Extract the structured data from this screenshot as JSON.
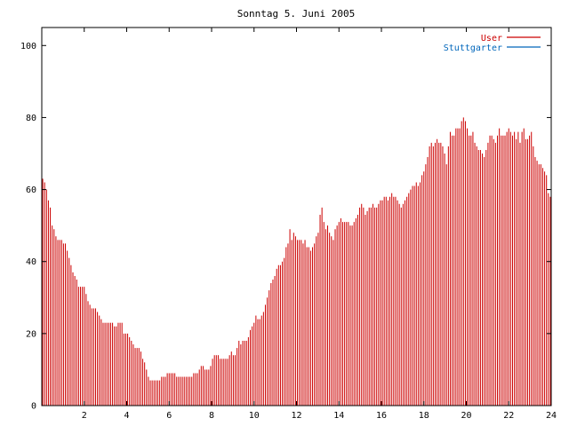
{
  "chart_data": {
    "type": "bar",
    "title": "Sonntag 5. Juni 2005",
    "xlabel": "",
    "ylabel": "",
    "xlim": [
      0,
      24
    ],
    "ylim": [
      0,
      105
    ],
    "x_ticks": [
      2,
      4,
      6,
      8,
      10,
      12,
      14,
      16,
      18,
      20,
      22,
      24
    ],
    "y_ticks": [
      0,
      20,
      40,
      60,
      80,
      100
    ],
    "grid": false,
    "legend_position": "top-right",
    "series": [
      {
        "name": "User",
        "color": "#cc0000",
        "values": [
          63,
          62,
          60,
          57,
          55,
          50,
          49,
          47,
          46,
          46,
          46,
          45,
          45,
          43,
          41,
          39,
          37,
          36,
          35,
          33,
          33,
          33,
          33,
          31,
          29,
          28,
          27,
          27,
          27,
          26,
          25,
          24,
          23,
          23,
          23,
          23,
          23,
          23,
          22,
          22,
          23,
          23,
          23,
          20,
          20,
          20,
          19,
          18,
          17,
          16,
          16,
          16,
          15,
          13,
          12,
          10,
          8,
          7,
          7,
          7,
          7,
          7,
          7,
          8,
          8,
          8,
          9,
          9,
          9,
          9,
          9,
          8,
          8,
          8,
          8,
          8,
          8,
          8,
          8,
          8,
          9,
          9,
          9,
          10,
          11,
          11,
          10,
          10,
          10,
          11,
          13,
          14,
          14,
          14,
          13,
          13,
          13,
          13,
          13,
          14,
          15,
          14,
          14,
          16,
          18,
          17,
          18,
          18,
          18,
          19,
          21,
          22,
          23,
          25,
          24,
          24,
          25,
          26,
          28,
          30,
          32,
          34,
          35,
          36,
          38,
          39,
          39,
          40,
          41,
          44,
          45,
          49,
          46,
          48,
          47,
          46,
          46,
          46,
          45,
          46,
          44,
          44,
          43,
          44,
          45,
          47,
          48,
          53,
          55,
          51,
          49,
          50,
          48,
          47,
          46,
          49,
          50,
          51,
          52,
          51,
          51,
          51,
          51,
          50,
          50,
          51,
          52,
          53,
          55,
          56,
          55,
          53,
          54,
          55,
          55,
          56,
          55,
          55,
          56,
          57,
          57,
          58,
          58,
          57,
          58,
          59,
          58,
          58,
          57,
          56,
          55,
          56,
          57,
          58,
          59,
          60,
          61,
          61,
          62,
          61,
          62,
          64,
          65,
          67,
          69,
          72,
          73,
          72,
          73,
          74,
          73,
          73,
          72,
          70,
          67,
          72,
          76,
          75,
          75,
          77,
          77,
          77,
          79,
          80,
          79,
          77,
          75,
          75,
          76,
          73,
          72,
          71,
          71,
          70,
          69,
          71,
          73,
          75,
          75,
          74,
          73,
          75,
          77,
          75,
          75,
          75,
          76,
          77,
          76,
          75,
          76,
          74,
          76,
          73,
          76,
          77,
          74,
          74,
          75,
          76,
          72,
          69,
          68,
          67,
          67,
          66,
          65,
          64,
          59,
          58
        ]
      },
      {
        "name": "Stuttgarter",
        "color": "#0066bb",
        "values": []
      }
    ]
  }
}
